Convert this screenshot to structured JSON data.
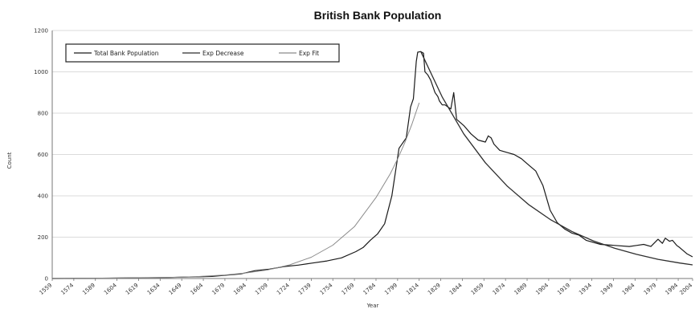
{
  "chart_data": {
    "type": "line",
    "title": "British Bank Population",
    "xlabel": "Year",
    "ylabel": "Count",
    "xlim": [
      1559,
      2004
    ],
    "ylim": [
      0,
      1200
    ],
    "y_ticks": [
      0,
      200,
      400,
      600,
      800,
      1000,
      1200
    ],
    "x_ticks": [
      "1559",
      "1574",
      "1589",
      "1604",
      "1619",
      "1634",
      "1649",
      "1664",
      "1679",
      "1694",
      "1709",
      "1724",
      "1739",
      "1754",
      "1769",
      "1784",
      "1799",
      "1814",
      "1829",
      "1844",
      "1859",
      "1874",
      "1889",
      "1904",
      "1919",
      "1934",
      "1949",
      "1964",
      "1979",
      "1994",
      "2004"
    ],
    "grid": true,
    "legend_position": "top-left",
    "series": [
      {
        "name": "Total Bank Population",
        "color": "#1a1a1a",
        "x": [
          1559,
          1600,
          1640,
          1670,
          1690,
          1700,
          1710,
          1720,
          1730,
          1740,
          1750,
          1760,
          1770,
          1775,
          1780,
          1785,
          1790,
          1795,
          1800,
          1805,
          1808,
          1810,
          1812,
          1813,
          1815,
          1817,
          1818,
          1820,
          1822,
          1825,
          1827,
          1828,
          1830,
          1832,
          1834,
          1836,
          1838,
          1840,
          1845,
          1850,
          1855,
          1860,
          1862,
          1864,
          1866,
          1870,
          1875,
          1880,
          1885,
          1890,
          1895,
          1900,
          1905,
          1910,
          1915,
          1920,
          1925,
          1930,
          1940,
          1950,
          1960,
          1965,
          1970,
          1975,
          1980,
          1983,
          1985,
          1988,
          1990,
          1993,
          1995,
          2000,
          2004
        ],
        "y": [
          0,
          2,
          5,
          10,
          22,
          38,
          45,
          58,
          65,
          75,
          85,
          100,
          130,
          150,
          185,
          215,
          265,
          400,
          630,
          680,
          830,
          870,
          1050,
          1095,
          1098,
          1090,
          1000,
          985,
          960,
          900,
          880,
          860,
          840,
          840,
          830,
          820,
          900,
          770,
          740,
          700,
          670,
          660,
          690,
          680,
          650,
          620,
          610,
          600,
          580,
          550,
          520,
          450,
          330,
          270,
          240,
          220,
          210,
          185,
          165,
          160,
          155,
          160,
          165,
          155,
          190,
          170,
          195,
          180,
          185,
          160,
          150,
          120,
          105
        ]
      },
      {
        "name": "Exp Decrease",
        "color": "#2e2e2e",
        "x": [
          1815,
          1830,
          1845,
          1860,
          1875,
          1890,
          1905,
          1920,
          1935,
          1950,
          1965,
          1980,
          1995,
          2004
        ],
        "y": [
          1100,
          878,
          700,
          560,
          448,
          358,
          286,
          228,
          182,
          146,
          117,
          93,
          75,
          66
        ]
      },
      {
        "name": "Exp Fit",
        "color": "#8a8a8a",
        "x": [
          1559,
          1599,
          1639,
          1659,
          1679,
          1694,
          1709,
          1724,
          1739,
          1754,
          1769,
          1784,
          1794,
          1799,
          1804,
          1809,
          1814
        ],
        "y": [
          1,
          2,
          5,
          9,
          17,
          27,
          42,
          66,
          103,
          161,
          251,
          392,
          508,
          578,
          657,
          748,
          850
        ]
      }
    ]
  }
}
